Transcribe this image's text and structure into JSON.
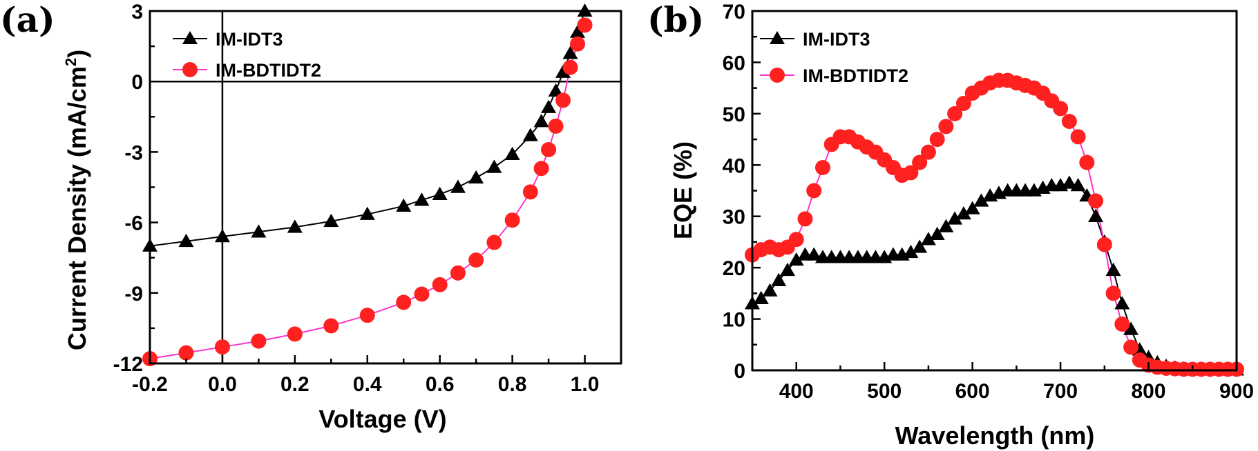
{
  "chart_data": [
    {
      "type": "line",
      "panel_label": "(a)",
      "xlabel": "Voltage (V)",
      "ylabel": "Current Density (mA/cm",
      "ylabel_sup": "2",
      "ylabel_close": ")",
      "xlim": [
        -0.2,
        1.1
      ],
      "ylim": [
        -12,
        3
      ],
      "xticks": [
        -0.2,
        0.0,
        0.2,
        0.4,
        0.6,
        0.8,
        1.0
      ],
      "xtick_labels": [
        "-0.2",
        "0.0",
        "0.2",
        "0.4",
        "0.6",
        "0.8",
        "1.0"
      ],
      "yticks": [
        -12,
        -9,
        -6,
        -3,
        0,
        3
      ],
      "ytick_labels": [
        "-12",
        "-9",
        "-6",
        "-3",
        "0",
        "3"
      ],
      "legend_position": "top-left",
      "series": [
        {
          "name": "IM-IDT3",
          "marker": "triangle",
          "color": "#000000",
          "line_color": "#000000",
          "x": [
            -0.2,
            -0.1,
            0.0,
            0.1,
            0.2,
            0.3,
            0.4,
            0.5,
            0.55,
            0.6,
            0.65,
            0.7,
            0.75,
            0.8,
            0.85,
            0.88,
            0.9,
            0.92,
            0.94,
            0.96,
            0.98,
            1.0
          ],
          "y": [
            -7.0,
            -6.8,
            -6.6,
            -6.4,
            -6.2,
            -5.95,
            -5.65,
            -5.3,
            -5.05,
            -4.8,
            -4.5,
            -4.1,
            -3.65,
            -3.1,
            -2.3,
            -1.7,
            -1.1,
            -0.4,
            0.4,
            1.2,
            2.1,
            3.0
          ]
        },
        {
          "name": "IM-BDTIDT2",
          "marker": "circle",
          "color": "#ff2020",
          "line_color": "#ff33cc",
          "x": [
            -0.2,
            -0.1,
            0.0,
            0.1,
            0.2,
            0.3,
            0.4,
            0.5,
            0.55,
            0.6,
            0.65,
            0.7,
            0.75,
            0.8,
            0.85,
            0.88,
            0.9,
            0.92,
            0.94,
            0.96,
            0.98,
            1.0
          ],
          "y": [
            -11.8,
            -11.55,
            -11.3,
            -11.05,
            -10.75,
            -10.4,
            -9.95,
            -9.4,
            -9.05,
            -8.65,
            -8.15,
            -7.6,
            -6.85,
            -5.9,
            -4.7,
            -3.7,
            -2.9,
            -1.9,
            -0.8,
            0.6,
            1.6,
            2.4
          ]
        }
      ]
    },
    {
      "type": "line",
      "panel_label": "(b)",
      "xlabel": "Wavelength (nm)",
      "ylabel": "EQE (%)",
      "xlim": [
        350,
        900
      ],
      "ylim": [
        0,
        70
      ],
      "xticks": [
        400,
        500,
        600,
        700,
        800,
        900
      ],
      "xtick_labels": [
        "400",
        "500",
        "600",
        "700",
        "800",
        "900"
      ],
      "yticks": [
        0,
        10,
        20,
        30,
        40,
        50,
        60,
        70
      ],
      "ytick_labels": [
        "0",
        "10",
        "20",
        "30",
        "40",
        "50",
        "60",
        "70"
      ],
      "legend_position": "top-left",
      "series": [
        {
          "name": "IM-IDT3",
          "marker": "triangle",
          "color": "#000000",
          "line_color": "#000000",
          "x": [
            350,
            360,
            370,
            380,
            390,
            400,
            410,
            420,
            430,
            440,
            450,
            460,
            470,
            480,
            490,
            500,
            510,
            520,
            530,
            540,
            550,
            560,
            570,
            580,
            590,
            600,
            610,
            620,
            630,
            640,
            650,
            660,
            670,
            680,
            690,
            700,
            710,
            720,
            730,
            740,
            750,
            760,
            770,
            780,
            790,
            800,
            810,
            820,
            830,
            840,
            850,
            860,
            870,
            880,
            890,
            900
          ],
          "y": [
            13,
            14,
            15.5,
            17.5,
            19.5,
            21.5,
            22.5,
            22.5,
            22,
            22,
            22,
            22,
            22,
            22,
            22,
            22,
            22.5,
            22.5,
            23,
            24,
            25.5,
            26.5,
            28,
            29.5,
            30.5,
            31.5,
            33,
            34,
            34.5,
            35,
            35,
            35,
            35,
            35.5,
            36,
            36,
            36.5,
            36,
            34,
            30,
            25,
            19.5,
            13,
            8,
            4,
            2.5,
            1.5,
            0.8,
            0.5,
            0.3,
            0.2,
            0.2,
            0.2,
            0.1,
            0.1,
            0.1
          ]
        },
        {
          "name": "IM-BDTIDT2",
          "marker": "circle",
          "color": "#ff2020",
          "line_color": "#ff33cc",
          "x": [
            350,
            360,
            370,
            380,
            390,
            400,
            410,
            420,
            430,
            440,
            450,
            460,
            470,
            480,
            490,
            500,
            510,
            520,
            530,
            540,
            550,
            560,
            570,
            580,
            590,
            600,
            610,
            620,
            630,
            640,
            650,
            660,
            670,
            680,
            690,
            700,
            710,
            720,
            730,
            740,
            750,
            760,
            770,
            780,
            790,
            800,
            810,
            820,
            830,
            840,
            850,
            860,
            870,
            880,
            890,
            900
          ],
          "y": [
            22.5,
            23.5,
            24,
            23.5,
            24,
            25.5,
            29.5,
            35,
            39.5,
            44,
            45.5,
            45.5,
            44.5,
            43.5,
            42.5,
            41,
            39.5,
            38,
            38.5,
            40.5,
            42.5,
            45,
            47.5,
            50,
            52,
            54,
            55,
            56,
            56.5,
            56.5,
            56,
            55.5,
            55,
            54,
            52.5,
            51,
            48.5,
            45.5,
            40.5,
            33,
            24.5,
            15,
            9,
            4.5,
            2,
            1,
            0.6,
            0.4,
            0.3,
            0.2,
            0.2,
            0.2,
            0.2,
            0.2,
            0.2,
            0.2
          ]
        }
      ]
    }
  ]
}
